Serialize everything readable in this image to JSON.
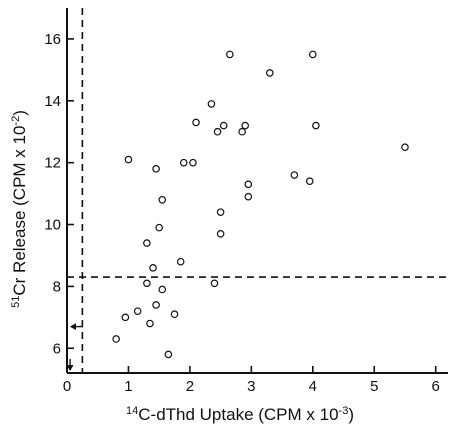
{
  "chart_data": {
    "type": "scatter",
    "title": "",
    "xlabel": "14C-dThd Uptake (CPM x 10-3)",
    "xlabel_parts": {
      "sup": "14",
      "main": "C-dThd Uptake (CPM x 10",
      "exp": "-3",
      "close": ")"
    },
    "ylabel": "51Cr Release (CPM x 10-2)",
    "ylabel_parts": {
      "sup": "51",
      "main": "Cr Release (CPM x 10",
      "exp": "-2",
      "close": ")"
    },
    "xlim": [
      0,
      6.2
    ],
    "ylim": [
      5.2,
      17
    ],
    "xticks": [
      0,
      1,
      2,
      3,
      4,
      5,
      6
    ],
    "xtick_labels": [
      "0",
      "1",
      "2",
      "3",
      "4",
      "5",
      "6"
    ],
    "yticks": [
      6,
      8,
      10,
      12,
      14,
      16
    ],
    "ytick_labels": [
      "6",
      "8",
      "10",
      "12",
      "14",
      "16"
    ],
    "grid": false,
    "marker": "open-circle",
    "reference_lines": {
      "horizontal_y": 8.3,
      "vertical_x": 0.25
    },
    "axis_markers": {
      "y_arrow_at": 6.7,
      "x_arrow_at": 0.05
    },
    "points": [
      {
        "x": 0.8,
        "y": 6.3
      },
      {
        "x": 0.95,
        "y": 7.0
      },
      {
        "x": 1.0,
        "y": 12.1
      },
      {
        "x": 1.15,
        "y": 7.2
      },
      {
        "x": 1.3,
        "y": 8.1
      },
      {
        "x": 1.3,
        "y": 9.4
      },
      {
        "x": 1.35,
        "y": 6.8
      },
      {
        "x": 1.4,
        "y": 8.6
      },
      {
        "x": 1.45,
        "y": 7.4
      },
      {
        "x": 1.45,
        "y": 11.8
      },
      {
        "x": 1.5,
        "y": 9.9
      },
      {
        "x": 1.55,
        "y": 7.9
      },
      {
        "x": 1.55,
        "y": 10.8
      },
      {
        "x": 1.65,
        "y": 5.8
      },
      {
        "x": 1.75,
        "y": 7.1
      },
      {
        "x": 1.85,
        "y": 8.8
      },
      {
        "x": 1.9,
        "y": 12.0
      },
      {
        "x": 2.05,
        "y": 12.0
      },
      {
        "x": 2.1,
        "y": 13.3
      },
      {
        "x": 2.35,
        "y": 13.9
      },
      {
        "x": 2.4,
        "y": 8.1
      },
      {
        "x": 2.45,
        "y": 13.0
      },
      {
        "x": 2.5,
        "y": 10.4
      },
      {
        "x": 2.5,
        "y": 9.7
      },
      {
        "x": 2.55,
        "y": 13.2
      },
      {
        "x": 2.65,
        "y": 15.5
      },
      {
        "x": 2.85,
        "y": 13.0
      },
      {
        "x": 2.9,
        "y": 13.2
      },
      {
        "x": 2.95,
        "y": 11.3
      },
      {
        "x": 2.95,
        "y": 10.9
      },
      {
        "x": 3.3,
        "y": 14.9
      },
      {
        "x": 3.7,
        "y": 11.6
      },
      {
        "x": 3.95,
        "y": 11.4
      },
      {
        "x": 4.0,
        "y": 15.5
      },
      {
        "x": 4.05,
        "y": 13.2
      },
      {
        "x": 5.5,
        "y": 12.5
      }
    ]
  }
}
